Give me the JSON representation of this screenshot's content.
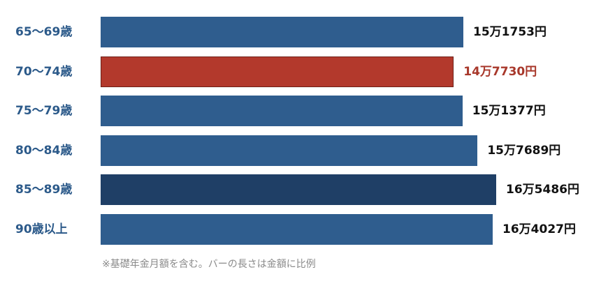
{
  "chart_data": {
    "type": "bar",
    "orientation": "horizontal",
    "categories": [
      "65〜69歳",
      "70〜74歳",
      "75〜79歳",
      "80〜84歳",
      "85〜89歳",
      "90歳以上"
    ],
    "values": [
      151753,
      147730,
      151377,
      157689,
      165486,
      164027
    ],
    "value_labels": [
      "15万1753円",
      "14万7730円",
      "15万1377円",
      "15万7689円",
      "16万5486円",
      "16万4027円"
    ],
    "colors": [
      "#2f5d8e",
      "#b3392c",
      "#2f5d8e",
      "#2f5d8e",
      "#1f3f66",
      "#2f5d8e"
    ],
    "value_label_colors": [
      "#111111",
      "#a8382b",
      "#111111",
      "#111111",
      "#111111",
      "#111111"
    ],
    "highlight_index": 1,
    "axis": "none",
    "grid": false,
    "legend": "none"
  },
  "note": "※基礎年金月額を含む。バーの長さは金額に比例"
}
